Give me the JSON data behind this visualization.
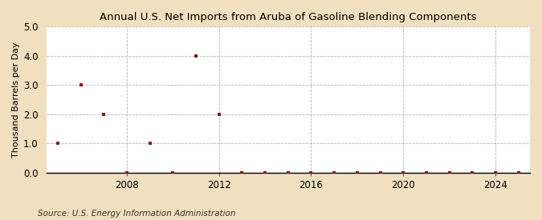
{
  "title": "Annual U.S. Net Imports from Aruba of Gasoline Blending Components",
  "ylabel": "Thousand Barrels per Day",
  "source": "Source: U.S. Energy Information Administration",
  "background_color": "#f0e0c0",
  "plot_background_color": "#ffffff",
  "marker_color": "#8b1a1a",
  "marker_style": "s",
  "marker_size": 3.5,
  "xlim": [
    2004.5,
    2025.5
  ],
  "ylim": [
    0.0,
    5.0
  ],
  "yticks": [
    0.0,
    1.0,
    2.0,
    3.0,
    4.0,
    5.0
  ],
  "xticks": [
    2008,
    2012,
    2016,
    2020,
    2024
  ],
  "grid_color": "#aaaaaa",
  "years": [
    2005,
    2006,
    2007,
    2008,
    2009,
    2010,
    2011,
    2012,
    2013,
    2014,
    2015,
    2016,
    2017,
    2018,
    2019,
    2020,
    2021,
    2022,
    2023,
    2024,
    2025
  ],
  "values": [
    1.0,
    3.0,
    2.0,
    0.0,
    1.0,
    0.0,
    4.0,
    2.0,
    0.0,
    0.0,
    0.0,
    0.0,
    0.0,
    0.0,
    0.0,
    0.0,
    0.0,
    0.0,
    0.0,
    0.0,
    0.0
  ]
}
